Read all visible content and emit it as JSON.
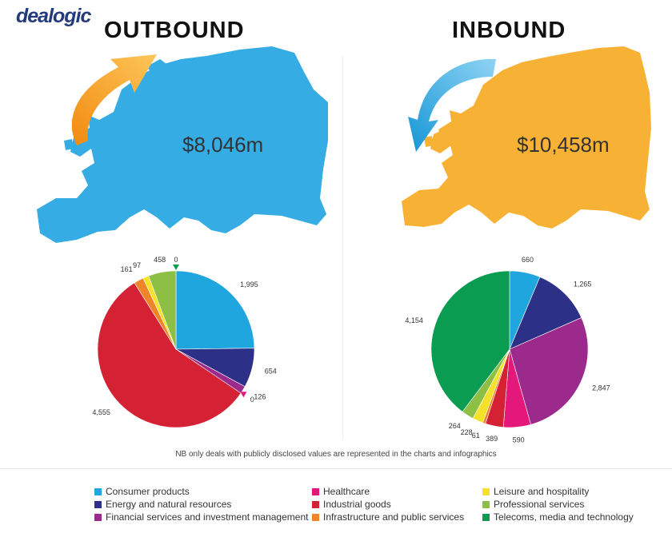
{
  "logo": "dealogic",
  "note": "NB only deals with publicly disclosed values are represented in the charts and infographics",
  "colors": {
    "map_outbound": "#35ace3",
    "map_inbound": "#f7b236",
    "arrow_outbound": "#f59a1a",
    "arrow_inbound": "#2aa5df"
  },
  "legend": [
    {
      "name": "Consumer products",
      "color": "#1fa6df"
    },
    {
      "name": "Healthcare",
      "color": "#e3187a"
    },
    {
      "name": "Leisure and hospitality",
      "color": "#f4e22a"
    },
    {
      "name": "Energy and natural resources",
      "color": "#2c3087"
    },
    {
      "name": "Industrial goods",
      "color": "#d42234"
    },
    {
      "name": "Professional services",
      "color": "#8cbf44"
    },
    {
      "name": "Financial services and investment management",
      "color": "#9c2a8c"
    },
    {
      "name": "Infrastructure and public services",
      "color": "#ef8428"
    },
    {
      "name": "Telecoms, media and technology",
      "color": "#0a9c50"
    }
  ],
  "chart_data": [
    {
      "type": "pie",
      "title": "OUTBOUND",
      "total_label": "$8,046m",
      "slices": [
        {
          "label": "Consumer products",
          "value": 1995,
          "display": "1,995",
          "color": "#1fa6df"
        },
        {
          "label": "Energy and natural resources",
          "value": 654,
          "display": "654",
          "color": "#2c3087"
        },
        {
          "label": "Financial services and investment management",
          "value": 126,
          "display": "126",
          "color": "#9c2a8c"
        },
        {
          "label": "Healthcare",
          "value": 0,
          "display": "0",
          "color": "#e3187a"
        },
        {
          "label": "Industrial goods",
          "value": 4555,
          "display": "4,555",
          "color": "#d42234"
        },
        {
          "label": "Infrastructure and public services",
          "value": 161,
          "display": "161",
          "color": "#ef8428"
        },
        {
          "label": "Leisure and hospitality",
          "value": 97,
          "display": "97",
          "color": "#f4e22a"
        },
        {
          "label": "Professional services",
          "value": 458,
          "display": "458",
          "color": "#8cbf44"
        },
        {
          "label": "Telecoms, media and technology",
          "value": 0,
          "display": "0",
          "color": "#0a9c50"
        }
      ]
    },
    {
      "type": "pie",
      "title": "INBOUND",
      "total_label": "$10,458m",
      "slices": [
        {
          "label": "Consumer products",
          "value": 660,
          "display": "660",
          "color": "#1fa6df"
        },
        {
          "label": "Energy and natural resources",
          "value": 1265,
          "display": "1,265",
          "color": "#2c3087"
        },
        {
          "label": "Financial services and investment management",
          "value": 2847,
          "display": "2,847",
          "color": "#9c2a8c"
        },
        {
          "label": "Healthcare",
          "value": 590,
          "display": "590",
          "color": "#e3187a"
        },
        {
          "label": "Industrial goods",
          "value": 389,
          "display": "389",
          "color": "#d42234"
        },
        {
          "label": "Infrastructure and public services",
          "value": 61,
          "display": "61",
          "color": "#ef8428"
        },
        {
          "label": "Leisure and hospitality",
          "value": 228,
          "display": "228",
          "color": "#f4e22a"
        },
        {
          "label": "Professional services",
          "value": 264,
          "display": "264",
          "color": "#8cbf44"
        },
        {
          "label": "Telecoms, media and technology",
          "value": 4154,
          "display": "4,154",
          "color": "#0a9c50"
        }
      ]
    }
  ]
}
